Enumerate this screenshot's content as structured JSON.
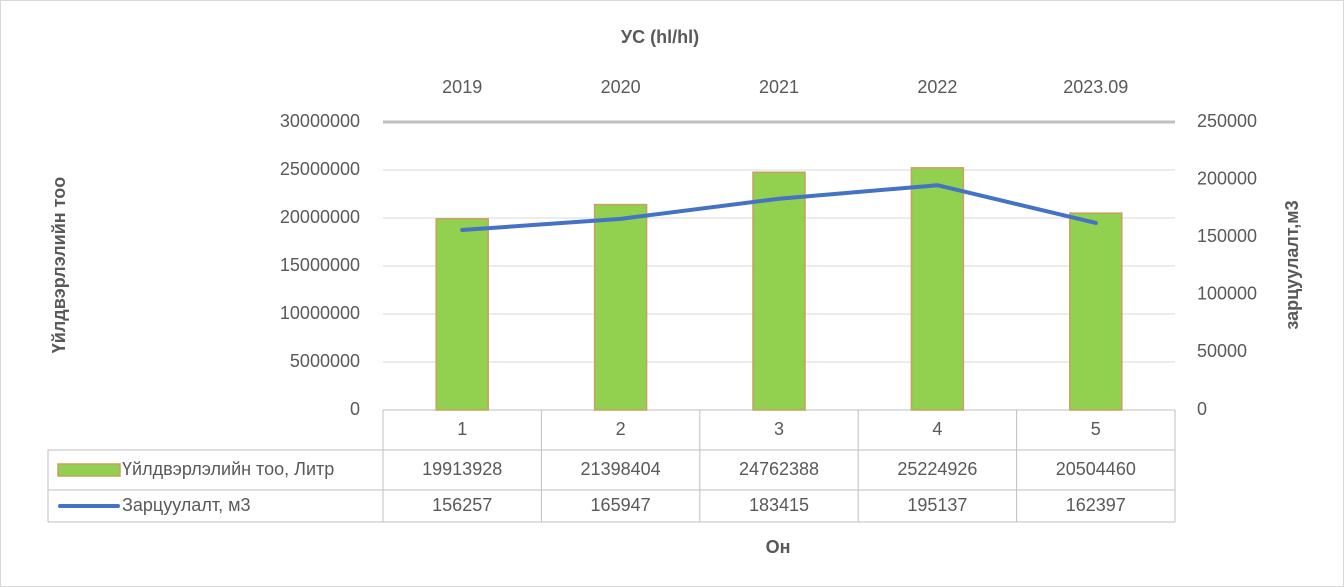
{
  "chart_data": {
    "type": "bar",
    "title": "УС (hl/hl)",
    "x_label": "Он",
    "y_label": "Үйлдвэрлэлийн тоо",
    "y2_label": "зарцуулалт,м3",
    "top_categories": [
      "2019",
      "2020",
      "2021",
      "2022",
      "2023.09"
    ],
    "categories": [
      "1",
      "2",
      "3",
      "4",
      "5"
    ],
    "series": [
      {
        "name": "Үйлдвэрлэлийн тоо, Литр",
        "type": "bar",
        "color": "#92d050",
        "values": [
          19913928,
          21398404,
          24762388,
          25224926,
          20504460
        ]
      },
      {
        "name": "Зарцуулалт, м3",
        "type": "line",
        "axis": "y2",
        "color": "#4472c4",
        "values": [
          156257,
          165947,
          183415,
          195137,
          162397
        ]
      }
    ],
    "ylim": [
      0,
      30000000
    ],
    "yticks": [
      0,
      5000000,
      10000000,
      15000000,
      20000000,
      25000000,
      30000000
    ],
    "y2lim": [
      0,
      250000
    ],
    "y2ticks": [
      0,
      50000,
      100000,
      150000,
      200000,
      250000
    ],
    "grid": true
  }
}
